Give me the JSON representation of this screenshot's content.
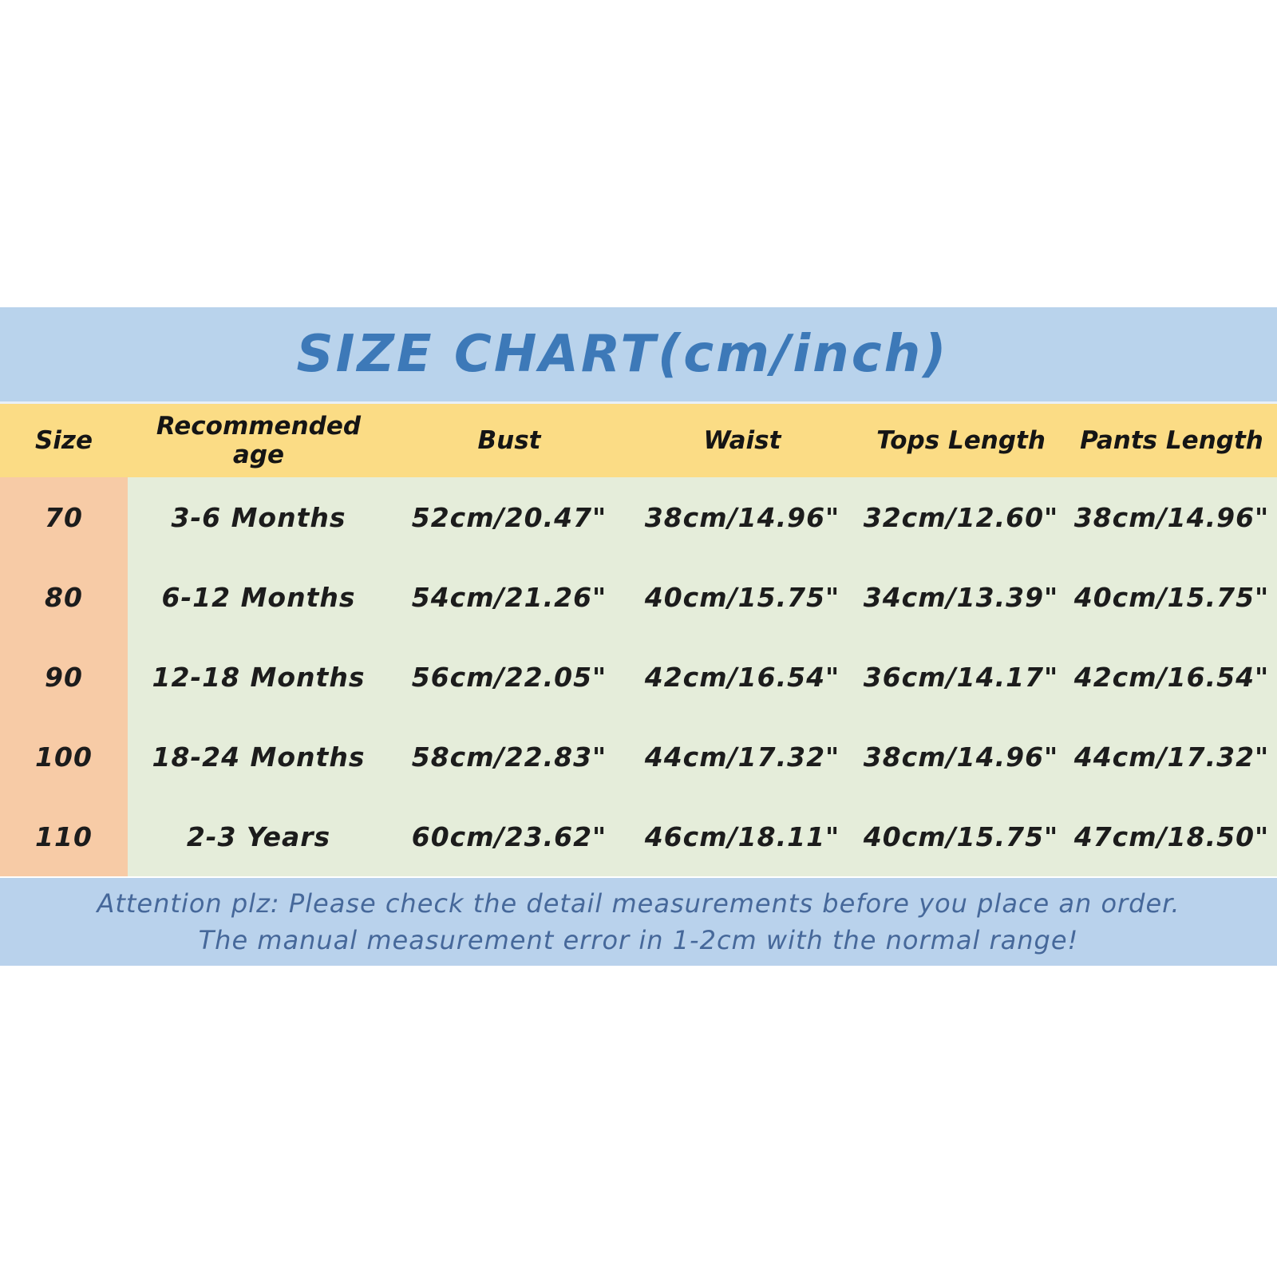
{
  "title": "SIZE CHART(cm/inch)",
  "chart_data": {
    "type": "table",
    "title": "SIZE CHART(cm/inch)",
    "headers": [
      "Size",
      "Recommended age",
      "Bust",
      "Waist",
      "Tops Length",
      "Pants Length"
    ],
    "rows": [
      [
        "70",
        "3-6 Months",
        "52cm/20.47\"",
        "38cm/14.96\"",
        "32cm/12.60\"",
        "38cm/14.96\""
      ],
      [
        "80",
        "6-12 Months",
        "54cm/21.26\"",
        "40cm/15.75\"",
        "34cm/13.39\"",
        "40cm/15.75\""
      ],
      [
        "90",
        "12-18 Months",
        "56cm/22.05\"",
        "42cm/16.54\"",
        "36cm/14.17\"",
        "42cm/16.54\""
      ],
      [
        "100",
        "18-24 Months",
        "58cm/22.83\"",
        "44cm/17.32\"",
        "38cm/14.96\"",
        "44cm/17.32\""
      ],
      [
        "110",
        "2-3 Years",
        "60cm/23.62\"",
        "46cm/18.11\"",
        "40cm/15.75\"",
        "47cm/18.50\""
      ]
    ]
  },
  "footer": {
    "line1": "Attention plz:  Please check the detail measurements before you place an order.",
    "line2": "The manual measurement error in 1-2cm with the normal range!"
  },
  "colors": {
    "title_band_bg": "#b9d3ec",
    "title_text": "#3d79b8",
    "header_row_bg": "#fbdc85",
    "header_text": "#151515",
    "size_column_bg": "#f7cba6",
    "body_cell_bg": "#e5edda",
    "body_text": "#1c1c1c",
    "footer_band_bg": "#b9d2ec",
    "footer_text": "#46689a"
  }
}
